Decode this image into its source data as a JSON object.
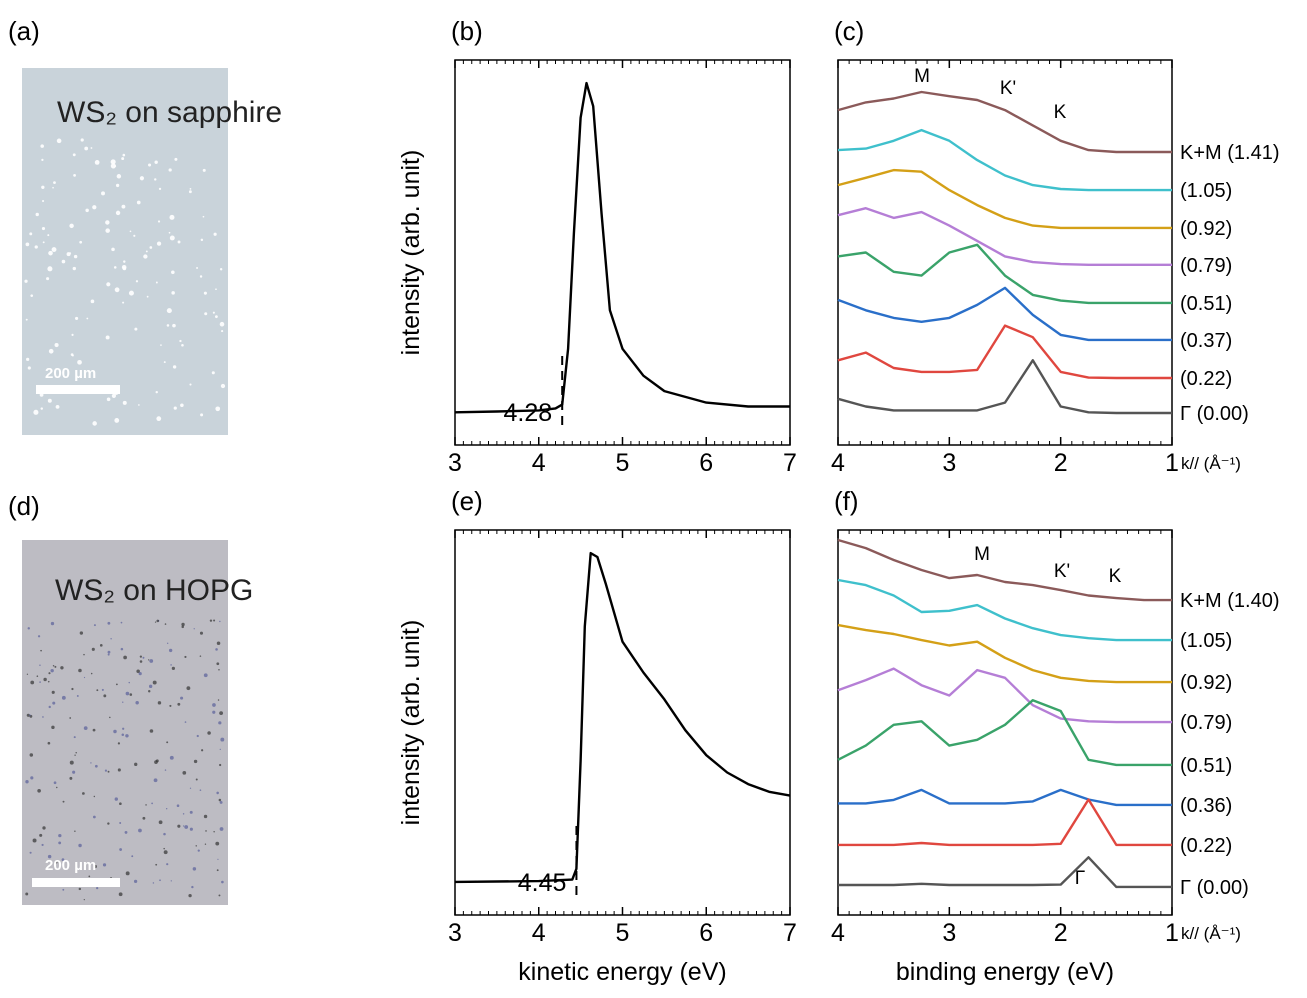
{
  "images": [
    {
      "panel": "(a)",
      "caption": "WS₂ on sapphire",
      "scale_bar": "200 µm"
    },
    {
      "panel": "(d)",
      "caption": "WS₂ on HOPG",
      "scale_bar": "200 µm"
    }
  ],
  "chart_data": [
    {
      "type": "line",
      "panel": "(b)",
      "ylabel": "intensity (arb. unit)",
      "color": "#000000",
      "xlim": [
        3,
        7
      ],
      "xticks": [
        3,
        4,
        5,
        6,
        7
      ],
      "minor_step": 0.1,
      "ylim": [
        0,
        100
      ],
      "cutoff": 4.28,
      "x": [
        3,
        3.5,
        4,
        4.2,
        4.28,
        4.35,
        4.42,
        4.5,
        4.57,
        4.65,
        4.75,
        4.85,
        5,
        5.25,
        5.5,
        6,
        6.5,
        7
      ],
      "values": [
        8.5,
        8.7,
        9,
        9.5,
        10.5,
        25,
        55,
        85,
        94,
        88,
        60,
        35,
        25,
        18,
        14,
        11,
        10,
        10
      ]
    },
    {
      "type": "line",
      "panel": "(c)",
      "x_unit": "k// (Å⁻¹)",
      "xlim": [
        4,
        1
      ],
      "xticks": [
        4,
        3,
        2,
        1
      ],
      "minor_step": 0.1,
      "ylim": [
        0,
        100
      ],
      "annotations": [
        "M",
        "K'",
        "K"
      ],
      "x": [
        4,
        3.75,
        3.5,
        3.25,
        3,
        2.75,
        2.5,
        2.25,
        2,
        1.75,
        1.5,
        1.25,
        1
      ],
      "series": [
        {
          "name": "K+M (1.41)",
          "color": "#8b5a5a",
          "values": [
            87,
            89,
            90,
            91.7,
            90.6,
            89.6,
            87,
            83,
            79,
            76.6,
            76.1,
            76.1,
            76.1
          ]
        },
        {
          "name": "(1.05)",
          "color": "#3fc0cc",
          "values": [
            76.6,
            77,
            79,
            81.8,
            79,
            74,
            70,
            67.5,
            66.5,
            66.2,
            66.2,
            66.2,
            66.2
          ]
        },
        {
          "name": "(0.92)",
          "color": "#d4a017",
          "values": [
            67.5,
            69.4,
            71.4,
            71,
            66.2,
            62.3,
            59,
            57,
            56.4,
            56.4,
            56.4,
            56.4,
            56.4
          ]
        },
        {
          "name": "(0.79)",
          "color": "#b57ed6",
          "values": [
            59.7,
            61.5,
            59,
            60.5,
            57,
            53,
            49,
            47.5,
            47,
            46.8,
            46.8,
            46.8,
            46.8
          ]
        },
        {
          "name": "(0.51)",
          "color": "#3aa36a",
          "values": [
            49,
            50,
            45,
            44,
            50,
            52,
            44,
            39,
            37.5,
            36.9,
            36.9,
            36.9,
            36.9
          ]
        },
        {
          "name": "(0.37)",
          "color": "#2a6fc9",
          "values": [
            37.7,
            35,
            33,
            32,
            33,
            36.4,
            40.8,
            33.8,
            28.6,
            27.3,
            27.3,
            27.3,
            27.3
          ]
        },
        {
          "name": "(0.22)",
          "color": "#e0473f",
          "values": [
            22,
            24,
            20,
            19,
            19,
            19.5,
            31,
            28,
            19,
            17.5,
            17.4,
            17.4,
            17.4
          ]
        },
        {
          "name": "Γ (0.00)",
          "color": "#555555",
          "values": [
            12,
            10,
            9,
            9,
            9,
            9,
            11,
            22,
            10,
            8.5,
            8.3,
            8.3,
            8.3
          ]
        }
      ]
    },
    {
      "type": "line",
      "panel": "(e)",
      "ylabel": "intensity (arb. unit)",
      "xlabel": "kinetic energy (eV)",
      "color": "#000000",
      "xlim": [
        3,
        7
      ],
      "xticks": [
        3,
        4,
        5,
        6,
        7
      ],
      "minor_step": 0.1,
      "ylim": [
        0,
        100
      ],
      "cutoff": 4.45,
      "x": [
        3,
        4,
        4.4,
        4.45,
        4.5,
        4.55,
        4.62,
        4.7,
        4.8,
        5,
        5.25,
        5.5,
        5.75,
        6,
        6.25,
        6.5,
        6.75,
        7
      ],
      "values": [
        8.6,
        8.8,
        9.2,
        12,
        40,
        75,
        94,
        93,
        86,
        71,
        63,
        56,
        48,
        41.5,
        37,
        34,
        32,
        31
      ]
    },
    {
      "type": "line",
      "panel": "(f)",
      "x_unit": "k// (Å⁻¹)",
      "xlabel": "binding energy (eV)",
      "xlim": [
        4,
        1
      ],
      "xticks": [
        4,
        3,
        2,
        1
      ],
      "minor_step": 0.1,
      "ylim": [
        0,
        100
      ],
      "annotations": [
        "M",
        "K'",
        "K",
        "Γ"
      ],
      "x": [
        4,
        3.75,
        3.5,
        3.25,
        3,
        2.75,
        2.5,
        2.25,
        2,
        1.75,
        1.5,
        1.25,
        1
      ],
      "series": [
        {
          "name": "K+M (1.40)",
          "color": "#8b5a5a",
          "values": [
            97.4,
            95.3,
            92.2,
            89.6,
            87.5,
            88.3,
            86.5,
            85.7,
            84.4,
            83,
            82.3,
            81.8,
            81.8
          ]
        },
        {
          "name": "(1.05)",
          "color": "#3fc0cc",
          "values": [
            87,
            85.7,
            83,
            78.7,
            79,
            80.5,
            77,
            74.5,
            72.7,
            71.9,
            71.4,
            71.4,
            71.4
          ]
        },
        {
          "name": "(0.92)",
          "color": "#d4a017",
          "values": [
            75.3,
            74,
            73,
            71.4,
            70,
            71,
            66.8,
            63.6,
            61.6,
            60.8,
            60.5,
            60.5,
            60.5
          ]
        },
        {
          "name": "(0.79)",
          "color": "#b57ed6",
          "values": [
            58.4,
            61,
            64,
            59.7,
            57,
            63.6,
            61.6,
            54.5,
            51,
            50.3,
            50.1,
            50.1,
            50.1
          ]
        },
        {
          "name": "(0.51)",
          "color": "#3aa36a",
          "values": [
            40.3,
            44,
            49.4,
            50.3,
            44,
            45.5,
            49.4,
            55.8,
            53,
            40.3,
            39,
            39,
            39
          ]
        },
        {
          "name": "(0.36)",
          "color": "#2a6fc9",
          "values": [
            29,
            29,
            29.9,
            32.5,
            29,
            29,
            29,
            29.5,
            32.5,
            30,
            28.6,
            28.6,
            28.6
          ]
        },
        {
          "name": "(0.22)",
          "color": "#e0473f",
          "values": [
            18.2,
            18.2,
            18.2,
            18.7,
            18.2,
            18.2,
            18.2,
            18.2,
            18.5,
            30,
            18.2,
            18.2,
            18.2
          ]
        },
        {
          "name": "Γ (0.00)",
          "color": "#555555",
          "values": [
            7.8,
            7.8,
            7.8,
            8.1,
            7.8,
            7.8,
            7.8,
            7.8,
            7.9,
            15,
            7.3,
            7.3,
            7.3
          ]
        }
      ]
    }
  ]
}
